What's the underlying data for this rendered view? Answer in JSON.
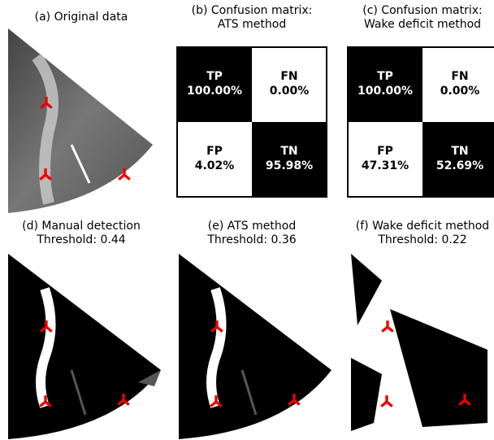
{
  "panels": [
    {
      "title": [
        "(a) Original data"
      ]
    },
    {
      "title": [
        "(b) Confusion matrix:",
        "ATS method"
      ],
      "matrix": [
        [
          {
            "label": "TP",
            "value": "100.00%"
          },
          {
            "label": "FN",
            "value": "0.00%"
          }
        ],
        [
          {
            "label": "FP",
            "value": "4.02%"
          },
          {
            "label": "TN",
            "value": "95.98%"
          }
        ]
      ]
    },
    {
      "title": [
        "(c) Confusion matrix:",
        "Wake deficit method"
      ],
      "matrix": [
        [
          {
            "label": "TP",
            "value": "100.00%"
          },
          {
            "label": "FN",
            "value": "0.00%"
          }
        ],
        [
          {
            "label": "FP",
            "value": "47.31%"
          },
          {
            "label": "TN",
            "value": "52.69%"
          }
        ]
      ]
    },
    {
      "title": [
        "(d) Manual detection",
        "Threshold: 0.44"
      ]
    },
    {
      "title": [
        "(e) ATS method",
        "Threshold: 0.36"
      ]
    },
    {
      "title": [
        "(f) Wake deficit method",
        "Threshold: 0.22"
      ]
    }
  ]
}
